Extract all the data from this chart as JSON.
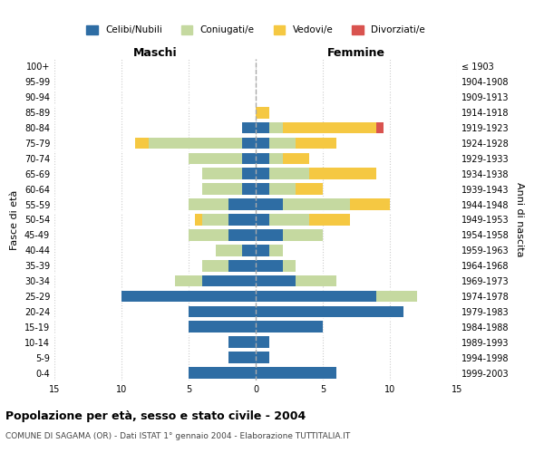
{
  "age_groups": [
    "0-4",
    "5-9",
    "10-14",
    "15-19",
    "20-24",
    "25-29",
    "30-34",
    "35-39",
    "40-44",
    "45-49",
    "50-54",
    "55-59",
    "60-64",
    "65-69",
    "70-74",
    "75-79",
    "80-84",
    "85-89",
    "90-94",
    "95-99",
    "100+"
  ],
  "birth_years": [
    "1999-2003",
    "1994-1998",
    "1989-1993",
    "1984-1988",
    "1979-1983",
    "1974-1978",
    "1969-1973",
    "1964-1968",
    "1959-1963",
    "1954-1958",
    "1949-1953",
    "1944-1948",
    "1939-1943",
    "1934-1938",
    "1929-1933",
    "1924-1928",
    "1919-1923",
    "1914-1918",
    "1909-1913",
    "1904-1908",
    "≤ 1903"
  ],
  "males": {
    "celibe": [
      5,
      2,
      2,
      5,
      5,
      10,
      4,
      2,
      1,
      2,
      2,
      2,
      1,
      1,
      1,
      1,
      1,
      0,
      0,
      0,
      0
    ],
    "coniugato": [
      0,
      0,
      0,
      0,
      0,
      0,
      2,
      2,
      2,
      3,
      2,
      3,
      3,
      3,
      4,
      7,
      0,
      0,
      0,
      0,
      0
    ],
    "vedovo": [
      0,
      0,
      0,
      0,
      0,
      0,
      0,
      0,
      0,
      0,
      0.5,
      0,
      0,
      0,
      0,
      1,
      0,
      0,
      0,
      0,
      0
    ],
    "divorziato": [
      0,
      0,
      0,
      0,
      0,
      0,
      0,
      0,
      0,
      0,
      0,
      0,
      0,
      0,
      0,
      0,
      0,
      0,
      0,
      0,
      0
    ]
  },
  "females": {
    "nubile": [
      6,
      1,
      1,
      5,
      11,
      9,
      3,
      2,
      1,
      2,
      1,
      2,
      1,
      1,
      1,
      1,
      1,
      0,
      0,
      0,
      0
    ],
    "coniugata": [
      0,
      0,
      0,
      0,
      0,
      3,
      3,
      1,
      1,
      3,
      3,
      5,
      2,
      3,
      1,
      2,
      1,
      0,
      0,
      0,
      0
    ],
    "vedova": [
      0,
      0,
      0,
      0,
      0,
      0,
      0,
      0,
      0,
      0,
      3,
      3,
      2,
      5,
      2,
      3,
      7,
      1,
      0,
      0,
      0
    ],
    "divorziata": [
      0,
      0,
      0,
      0,
      0,
      0,
      0,
      0,
      0,
      0,
      0,
      0,
      0,
      0,
      0,
      0,
      0.5,
      0,
      0,
      0,
      0
    ]
  },
  "color_celibe": "#2e6da4",
  "color_coniugato": "#c5d9a0",
  "color_vedovo": "#f5c842",
  "color_divorziato": "#d9534f",
  "title": "Popolazione per età, sesso e stato civile - 2004",
  "subtitle": "COMUNE DI SAGAMA (OR) - Dati ISTAT 1° gennaio 2004 - Elaborazione TUTTITALIA.IT",
  "xlabel_left": "Maschi",
  "xlabel_right": "Femmine",
  "ylabel_left": "Fasce di età",
  "ylabel_right": "Anni di nascita",
  "xlim": 15,
  "background_color": "#ffffff",
  "grid_color": "#cccccc"
}
